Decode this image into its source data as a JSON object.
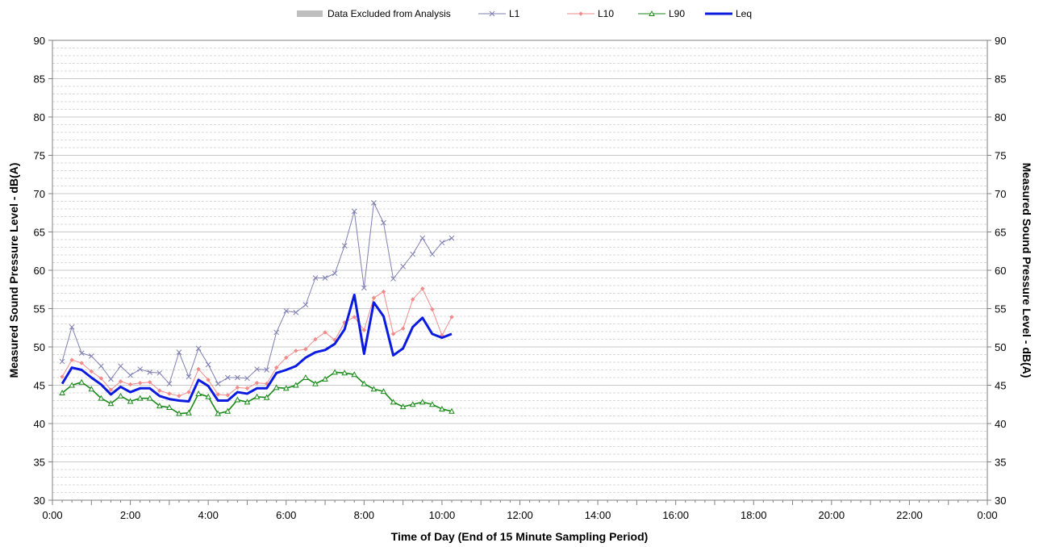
{
  "chart_data": {
    "type": "line",
    "title": "",
    "xlabel": "Time of Day (End of 15 Minute Sampling Period)",
    "ylabel_left": "Measured Sound Pressure Level - dB(A)",
    "ylabel_right": "Measured Sound Pressure Level - dB(A)",
    "xlim_hours": [
      0,
      24
    ],
    "ylim": [
      30,
      90
    ],
    "grid": true,
    "legend_position": "top",
    "x_tick_labels": [
      "0:00",
      "2:00",
      "4:00",
      "6:00",
      "8:00",
      "10:00",
      "12:00",
      "14:00",
      "16:00",
      "18:00",
      "20:00",
      "22:00",
      "0:00"
    ],
    "y_tick_labels": [
      "30",
      "35",
      "40",
      "45",
      "50",
      "55",
      "60",
      "65",
      "70",
      "75",
      "80",
      "85",
      "90"
    ],
    "legend": [
      {
        "label": "Data Excluded from Analysis",
        "kind": "bar",
        "color": "#bfbfbf"
      },
      {
        "label": "L1",
        "kind": "line-x",
        "color": "#7f7fb2"
      },
      {
        "label": "L10",
        "kind": "line-diamond",
        "color": "#f28b8b"
      },
      {
        "label": "L90",
        "kind": "line-triangle",
        "color": "#1a8a1a"
      },
      {
        "label": "Leq",
        "kind": "line-thick",
        "color": "#0a1adf"
      }
    ],
    "x_times": [
      "0:15",
      "0:30",
      "0:45",
      "1:00",
      "1:15",
      "1:30",
      "1:45",
      "2:00",
      "2:15",
      "2:30",
      "2:45",
      "3:00",
      "3:15",
      "3:30",
      "3:45",
      "4:00",
      "4:15",
      "4:30",
      "4:45",
      "5:00",
      "5:15",
      "5:30",
      "5:45",
      "6:00",
      "6:15",
      "6:30",
      "6:45",
      "7:00",
      "7:15",
      "7:30",
      "7:45",
      "8:00",
      "8:15",
      "8:30",
      "8:45",
      "9:00",
      "9:15",
      "9:30",
      "9:45",
      "10:00",
      "10:15"
    ],
    "series": [
      {
        "name": "L1",
        "color": "#7f7fb2",
        "values": [
          48.1,
          52.6,
          49.2,
          48.8,
          47.5,
          45.8,
          47.5,
          46.3,
          47.1,
          46.7,
          46.6,
          45.2,
          49.3,
          46.1,
          49.8,
          47.7,
          45.2,
          46.0,
          46.0,
          45.9,
          47.1,
          47.0,
          51.9,
          54.7,
          54.5,
          55.5,
          59.0,
          59.0,
          59.6,
          63.2,
          67.7,
          57.7,
          68.8,
          66.2,
          58.9,
          60.5,
          62.1,
          64.2,
          62.1,
          63.6,
          64.2
        ]
      },
      {
        "name": "L10",
        "color": "#f28b8b",
        "values": [
          46.1,
          48.3,
          47.9,
          46.8,
          45.9,
          44.4,
          45.5,
          45.1,
          45.3,
          45.4,
          44.3,
          43.9,
          43.6,
          44.1,
          47.1,
          45.7,
          43.8,
          43.7,
          44.7,
          44.6,
          45.3,
          45.2,
          47.3,
          48.6,
          49.5,
          49.7,
          51.0,
          51.9,
          50.9,
          53.2,
          53.9,
          52.2,
          56.4,
          57.2,
          51.7,
          52.4,
          56.2,
          57.6,
          54.9,
          51.5,
          53.9
        ]
      },
      {
        "name": "L90",
        "color": "#1a8a1a",
        "values": [
          44.0,
          45.0,
          45.4,
          44.5,
          43.3,
          42.6,
          43.6,
          42.9,
          43.3,
          43.3,
          42.3,
          42.1,
          41.3,
          41.4,
          43.9,
          43.5,
          41.3,
          41.6,
          43.1,
          42.8,
          43.5,
          43.4,
          44.7,
          44.6,
          45.0,
          46.0,
          45.2,
          45.8,
          46.7,
          46.6,
          46.4,
          45.2,
          44.5,
          44.2,
          42.8,
          42.2,
          42.5,
          42.8,
          42.5,
          41.9,
          41.6
        ]
      },
      {
        "name": "Leq",
        "color": "#0a1adf",
        "values": [
          45.2,
          47.3,
          47.0,
          46.0,
          45.1,
          43.8,
          44.8,
          44.1,
          44.6,
          44.6,
          43.6,
          43.2,
          43.0,
          42.9,
          45.7,
          44.9,
          43.0,
          43.0,
          44.1,
          43.9,
          44.6,
          44.6,
          46.6,
          47.0,
          47.5,
          48.6,
          49.3,
          49.6,
          50.4,
          52.3,
          56.8,
          49.1,
          55.8,
          54.0,
          48.9,
          49.8,
          52.6,
          53.8,
          51.7,
          51.2,
          51.7
        ]
      }
    ]
  }
}
